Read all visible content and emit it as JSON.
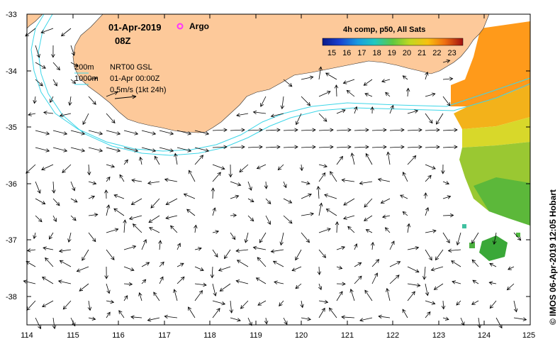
{
  "map": {
    "date": "01-Apr-2019",
    "time": "08Z",
    "argo_label": "Argo",
    "argo_color": "#ff33ff",
    "legend_lines": [
      {
        "key": "200m",
        "value": "NRT00 GSL"
      },
      {
        "key": "1000m",
        "value": "01-Apr 00:00Z"
      },
      {
        "key": "",
        "value": "0.5m/s (1kt 24h)"
      }
    ],
    "copyright": "© IMOS 06-Apr-2019 12:05 Hobart",
    "land_color": "#fdc99a",
    "contour_color": "#3dd6e8"
  },
  "colorbar": {
    "title": "4h comp, p50, All Sats",
    "ticks": [
      "15",
      "16",
      "17",
      "18",
      "19",
      "20",
      "21",
      "22",
      "23"
    ]
  },
  "axes": {
    "x_ticks": [
      "114",
      "115",
      "116",
      "117",
      "118",
      "119",
      "120",
      "121",
      "122",
      "123",
      "124",
      "125"
    ],
    "y_ticks": [
      "-33",
      "-34",
      "-35",
      "-36",
      "-37",
      "-38"
    ],
    "x_range": [
      114,
      125
    ],
    "y_range": [
      -38.5,
      -33
    ]
  }
}
